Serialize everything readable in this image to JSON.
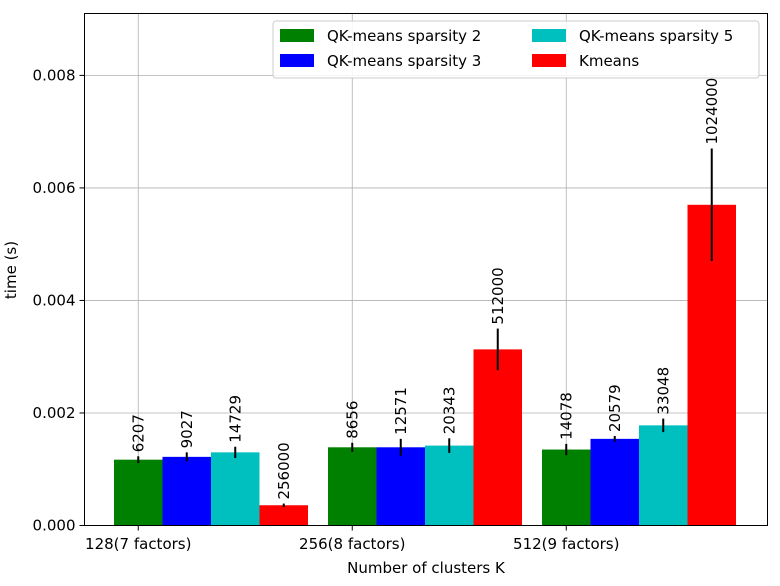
{
  "chart_data": {
    "type": "bar",
    "title": "",
    "xlabel": "Number of clusters K",
    "ylabel": "time (s)",
    "categories": [
      "128(7 factors)",
      "256(8 factors)",
      "512(9 factors)"
    ],
    "ylim": [
      0,
      0.0091
    ],
    "yticks": [
      0.0,
      0.002,
      0.004,
      0.006,
      0.008
    ],
    "ytick_labels": [
      "0.000",
      "0.002",
      "0.004",
      "0.006",
      "0.008"
    ],
    "grid": true,
    "legend_position": "upper right",
    "legend_columns": 2,
    "series": [
      {
        "name": "QK-means sparsity 2",
        "color": "#008000",
        "values": [
          0.00117,
          0.00139,
          0.00135
        ],
        "errors": [
          6e-05,
          8e-05,
          0.0001
        ],
        "labels": [
          "6207",
          "8656",
          "14078"
        ]
      },
      {
        "name": "QK-means sparsity 3",
        "color": "#0000ff",
        "values": [
          0.00122,
          0.00139,
          0.00154
        ],
        "errors": [
          8e-05,
          0.00015,
          5e-05
        ],
        "labels": [
          "9027",
          "12571",
          "20579"
        ]
      },
      {
        "name": "QK-means sparsity 5",
        "color": "#00bfbf",
        "values": [
          0.0013,
          0.00142,
          0.00178
        ],
        "errors": [
          0.0001,
          0.00013,
          0.00012
        ],
        "labels": [
          "14729",
          "20343",
          "33048"
        ]
      },
      {
        "name": "Kmeans",
        "color": "#ff0000",
        "values": [
          0.00036,
          0.00313,
          0.0057
        ],
        "errors": [
          3e-05,
          0.00037,
          0.001
        ],
        "labels": [
          "256000",
          "512000",
          "1024000"
        ]
      }
    ]
  }
}
